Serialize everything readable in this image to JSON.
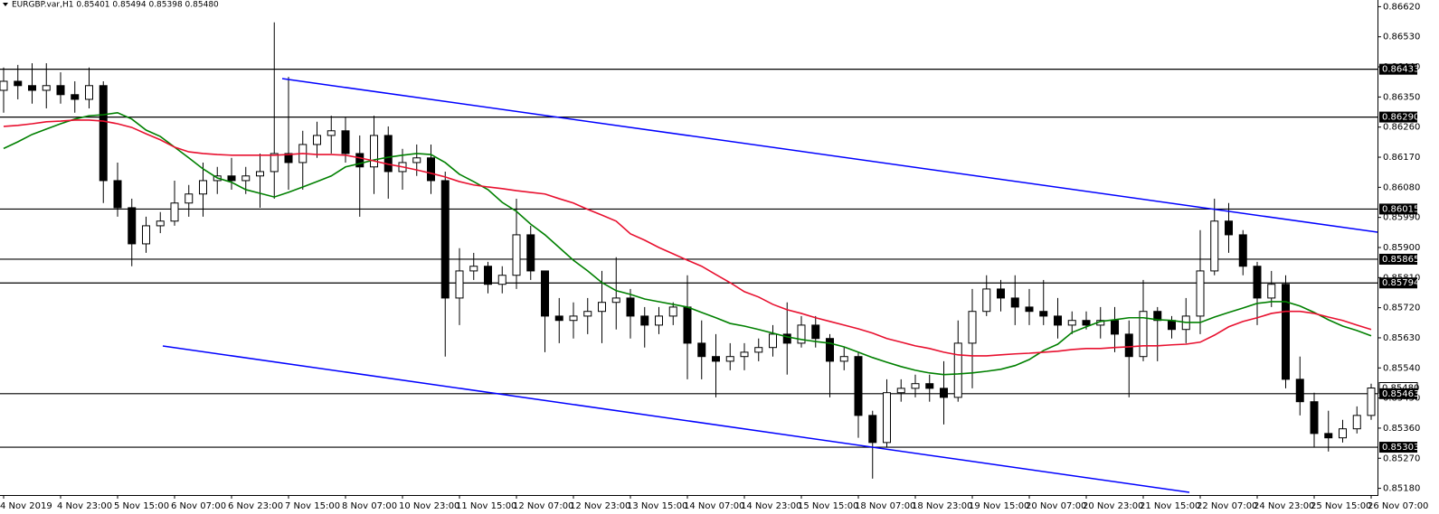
{
  "chart_data": {
    "type": "candlestick",
    "title": "EURGBP.var,H1  0.85401 0.85494 0.85398 0.85480",
    "categories": [
      "4 Nov 2019",
      null,
      null,
      null,
      "4 Nov 23:00",
      null,
      null,
      null,
      "5 Nov 15:00",
      null,
      null,
      null,
      "6 Nov 07:00",
      null,
      null,
      null,
      "6 Nov 23:00",
      null,
      null,
      null,
      "7 Nov 15:00",
      null,
      null,
      null,
      "8 Nov 07:00",
      null,
      null,
      null,
      "10 Nov 23:00",
      null,
      null,
      null,
      "11 Nov 15:00",
      null,
      null,
      null,
      "12 Nov 07:00",
      null,
      null,
      null,
      "12 Nov 23:00",
      null,
      null,
      null,
      "13 Nov 15:00",
      null,
      null,
      null,
      "14 Nov 07:00",
      null,
      null,
      null,
      "14 Nov 23:00",
      null,
      null,
      null,
      "15 Nov 15:00",
      null,
      null,
      null,
      "18 Nov 07:00",
      null,
      null,
      null,
      "18 Nov 23:00",
      null,
      null,
      null,
      "19 Nov 15:00",
      null,
      null,
      null,
      "20 Nov 07:00",
      null,
      null,
      null,
      "20 Nov 23:00",
      null,
      null,
      null,
      "21 Nov 15:00",
      null,
      null,
      null,
      "22 Nov 07:00",
      null,
      null,
      null,
      "24 Nov 23:00",
      null,
      null,
      null,
      "25 Nov 15:00",
      null,
      null,
      null,
      "26 Nov 07:00"
    ],
    "ohlc": [
      [
        0.8637,
        0.86438,
        0.86303,
        0.86397
      ],
      [
        0.86397,
        0.86446,
        0.86343,
        0.86384
      ],
      [
        0.86384,
        0.86451,
        0.8633,
        0.8637
      ],
      [
        0.8637,
        0.86451,
        0.86316,
        0.86384
      ],
      [
        0.86384,
        0.86424,
        0.8633,
        0.86357
      ],
      [
        0.86357,
        0.86397,
        0.86303,
        0.86343
      ],
      [
        0.86343,
        0.86438,
        0.86316,
        0.86384
      ],
      [
        0.86384,
        0.86397,
        0.86033,
        0.861
      ],
      [
        0.861,
        0.86154,
        0.85992,
        0.86019
      ],
      [
        0.86019,
        0.86046,
        0.85844,
        0.85911
      ],
      [
        0.85911,
        0.85992,
        0.85884,
        0.85965
      ],
      [
        0.85965,
        0.86006,
        0.85943,
        0.85979
      ],
      [
        0.85979,
        0.861,
        0.85965,
        0.86033
      ],
      [
        0.86033,
        0.86087,
        0.85992,
        0.8606
      ],
      [
        0.8606,
        0.86154,
        0.85992,
        0.861
      ],
      [
        0.861,
        0.86141,
        0.8606,
        0.86114
      ],
      [
        0.86114,
        0.86168,
        0.86073,
        0.861
      ],
      [
        0.861,
        0.86141,
        0.8606,
        0.86114
      ],
      [
        0.86114,
        0.86181,
        0.86019,
        0.86127
      ],
      [
        0.86127,
        0.86573,
        0.86046,
        0.86181
      ],
      [
        0.86181,
        0.8641,
        0.86073,
        0.86154
      ],
      [
        0.86154,
        0.86249,
        0.86073,
        0.86208
      ],
      [
        0.86208,
        0.86276,
        0.86168,
        0.86235
      ],
      [
        0.86235,
        0.86294,
        0.86181,
        0.86249
      ],
      [
        0.86249,
        0.86289,
        0.86154,
        0.86181
      ],
      [
        0.86181,
        0.86235,
        0.85992,
        0.86141
      ],
      [
        0.86141,
        0.86294,
        0.8606,
        0.86235
      ],
      [
        0.86235,
        0.86262,
        0.86046,
        0.86127
      ],
      [
        0.86127,
        0.86195,
        0.86073,
        0.86154
      ],
      [
        0.86154,
        0.86208,
        0.86114,
        0.86168
      ],
      [
        0.86168,
        0.86208,
        0.8606,
        0.861
      ],
      [
        0.861,
        0.86127,
        0.85574,
        0.85749
      ],
      [
        0.85749,
        0.85898,
        0.85668,
        0.8583
      ],
      [
        0.8583,
        0.85884,
        0.85803,
        0.85844
      ],
      [
        0.85844,
        0.85857,
        0.85763,
        0.8579
      ],
      [
        0.8579,
        0.85844,
        0.85763,
        0.85817
      ],
      [
        0.85817,
        0.86046,
        0.85776,
        0.85938
      ],
      [
        0.85938,
        0.85965,
        0.85803,
        0.8583
      ],
      [
        0.8583,
        0.8583,
        0.85587,
        0.85695
      ],
      [
        0.85695,
        0.85749,
        0.85614,
        0.85682
      ],
      [
        0.85682,
        0.85736,
        0.85628,
        0.85695
      ],
      [
        0.85695,
        0.85749,
        0.85641,
        0.85709
      ],
      [
        0.85709,
        0.8583,
        0.85614,
        0.85736
      ],
      [
        0.85736,
        0.85871,
        0.85655,
        0.85749
      ],
      [
        0.85749,
        0.85776,
        0.85628,
        0.85695
      ],
      [
        0.85695,
        0.85722,
        0.85601,
        0.85668
      ],
      [
        0.85668,
        0.85722,
        0.85641,
        0.85695
      ],
      [
        0.85695,
        0.85736,
        0.85668,
        0.85722
      ],
      [
        0.85722,
        0.85817,
        0.85506,
        0.85614
      ],
      [
        0.85614,
        0.85682,
        0.85506,
        0.85574
      ],
      [
        0.85574,
        0.85641,
        0.85452,
        0.8556
      ],
      [
        0.8556,
        0.85614,
        0.85533,
        0.85574
      ],
      [
        0.85574,
        0.85614,
        0.85533,
        0.85587
      ],
      [
        0.85587,
        0.85628,
        0.8556,
        0.85601
      ],
      [
        0.85601,
        0.85668,
        0.85574,
        0.85641
      ],
      [
        0.85641,
        0.85736,
        0.8552,
        0.85614
      ],
      [
        0.85614,
        0.85695,
        0.85601,
        0.85668
      ],
      [
        0.85668,
        0.85695,
        0.85601,
        0.85628
      ],
      [
        0.85628,
        0.85641,
        0.85452,
        0.8556
      ],
      [
        0.8556,
        0.85601,
        0.85533,
        0.85574
      ],
      [
        0.85574,
        0.85587,
        0.85331,
        0.85398
      ],
      [
        0.85398,
        0.85412,
        0.85209,
        0.85317
      ],
      [
        0.85317,
        0.85506,
        0.85304,
        0.85466
      ],
      [
        0.85466,
        0.85506,
        0.85439,
        0.85479
      ],
      [
        0.85479,
        0.8552,
        0.85452,
        0.85493
      ],
      [
        0.85493,
        0.8552,
        0.85439,
        0.85479
      ],
      [
        0.85479,
        0.8556,
        0.85371,
        0.85452
      ],
      [
        0.85452,
        0.85682,
        0.85439,
        0.85614
      ],
      [
        0.85614,
        0.85776,
        0.85479,
        0.85709
      ],
      [
        0.85709,
        0.85817,
        0.85695,
        0.85776
      ],
      [
        0.85776,
        0.85803,
        0.85709,
        0.85749
      ],
      [
        0.85749,
        0.85817,
        0.85668,
        0.85722
      ],
      [
        0.85722,
        0.85776,
        0.85668,
        0.85709
      ],
      [
        0.85709,
        0.85803,
        0.85668,
        0.85695
      ],
      [
        0.85695,
        0.85749,
        0.85628,
        0.85668
      ],
      [
        0.85668,
        0.85709,
        0.85641,
        0.85682
      ],
      [
        0.85682,
        0.85709,
        0.85655,
        0.85668
      ],
      [
        0.85668,
        0.85722,
        0.85628,
        0.85682
      ],
      [
        0.85682,
        0.85722,
        0.85587,
        0.85641
      ],
      [
        0.85641,
        0.85682,
        0.85452,
        0.85574
      ],
      [
        0.85574,
        0.85803,
        0.8556,
        0.85709
      ],
      [
        0.85709,
        0.85722,
        0.8556,
        0.85682
      ],
      [
        0.85682,
        0.85695,
        0.85628,
        0.85655
      ],
      [
        0.85655,
        0.85749,
        0.85614,
        0.85695
      ],
      [
        0.85695,
        0.85952,
        0.85641,
        0.8583
      ],
      [
        0.8583,
        0.86046,
        0.85817,
        0.85979
      ],
      [
        0.85979,
        0.86033,
        0.85884,
        0.85938
      ],
      [
        0.85938,
        0.85952,
        0.85817,
        0.85844
      ],
      [
        0.85844,
        0.85857,
        0.85668,
        0.85749
      ],
      [
        0.85749,
        0.8583,
        0.85722,
        0.8579
      ],
      [
        0.8579,
        0.85817,
        0.85479,
        0.85506
      ],
      [
        0.85506,
        0.85574,
        0.85398,
        0.85439
      ],
      [
        0.85439,
        0.85466,
        0.85304,
        0.85344
      ],
      [
        0.85344,
        0.85412,
        0.8529,
        0.85331
      ],
      [
        0.85331,
        0.85385,
        0.85317,
        0.85358
      ],
      [
        0.85358,
        0.85425,
        0.85344,
        0.85398
      ],
      [
        0.85398,
        0.85493,
        0.85385,
        0.8548
      ]
    ],
    "lines": [
      {
        "color": "#008000",
        "values": [
          0.86196,
          0.86216,
          0.86238,
          0.86254,
          0.8627,
          0.86284,
          0.86294,
          0.86297,
          0.86303,
          0.86284,
          0.86251,
          0.86232,
          0.862,
          0.86168,
          0.86135,
          0.86108,
          0.86095,
          0.86073,
          0.86062,
          0.86051,
          0.86065,
          0.86081,
          0.86097,
          0.86114,
          0.86141,
          0.86151,
          0.86162,
          0.8617,
          0.86176,
          0.86181,
          0.86178,
          0.86154,
          0.86119,
          0.86097,
          0.86073,
          0.86035,
          0.86008,
          0.8597,
          0.85938,
          0.859,
          0.85862,
          0.8583,
          0.85795,
          0.85771,
          0.8576,
          0.85746,
          0.85738,
          0.8573,
          0.85722,
          0.85706,
          0.8569,
          0.85673,
          0.85665,
          0.85655,
          0.85644,
          0.85633,
          0.85625,
          0.85619,
          0.85614,
          0.85603,
          0.85587,
          0.85571,
          0.85557,
          0.85544,
          0.85533,
          0.85525,
          0.8552,
          0.85522,
          0.85525,
          0.8553,
          0.85536,
          0.85547,
          0.85565,
          0.85592,
          0.85611,
          0.85646,
          0.85663,
          0.85679,
          0.85684,
          0.8569,
          0.8569,
          0.85684,
          0.85682,
          0.85676,
          0.85676,
          0.85692,
          0.85706,
          0.85719,
          0.85733,
          0.85738,
          0.85738,
          0.85725,
          0.85706,
          0.85684,
          0.85665,
          0.85652,
          0.85636
        ]
      },
      {
        "color": "#e8102f",
        "values": [
          0.86262,
          0.86265,
          0.8627,
          0.86276,
          0.86278,
          0.86281,
          0.86281,
          0.86278,
          0.8627,
          0.86259,
          0.8624,
          0.86222,
          0.862,
          0.86186,
          0.86181,
          0.86178,
          0.86176,
          0.86176,
          0.86176,
          0.86176,
          0.86178,
          0.86181,
          0.86178,
          0.86178,
          0.86176,
          0.86168,
          0.86159,
          0.86149,
          0.86141,
          0.86132,
          0.86122,
          0.86111,
          0.86097,
          0.86087,
          0.86081,
          0.86076,
          0.8607,
          0.86065,
          0.8606,
          0.86046,
          0.86033,
          0.86014,
          0.85997,
          0.85979,
          0.85941,
          0.85922,
          0.859,
          0.85881,
          0.85862,
          0.85844,
          0.85819,
          0.85795,
          0.85768,
          0.85752,
          0.8573,
          0.85714,
          0.85703,
          0.8569,
          0.85679,
          0.85668,
          0.85657,
          0.85644,
          0.85628,
          0.85617,
          0.85606,
          0.85598,
          0.85587,
          0.85579,
          0.85576,
          0.85576,
          0.85579,
          0.85582,
          0.85584,
          0.85587,
          0.8559,
          0.85595,
          0.85598,
          0.85598,
          0.85601,
          0.85603,
          0.85606,
          0.85606,
          0.85609,
          0.85611,
          0.85617,
          0.85638,
          0.85663,
          0.85679,
          0.8569,
          0.85703,
          0.85709,
          0.85709,
          0.85703,
          0.85692,
          0.85682,
          0.85668,
          0.85655
        ]
      }
    ],
    "levels": [
      {
        "value": 0.86433,
        "label": "0.86433"
      },
      {
        "value": 0.8629,
        "label": "0.86290"
      },
      {
        "value": 0.86015,
        "label": "0.86015"
      },
      {
        "value": 0.85865,
        "label": "0.85865"
      },
      {
        "value": 0.85794,
        "label": "0.85794"
      },
      {
        "value": 0.85463,
        "label": "0.85463"
      },
      {
        "value": 0.85303,
        "label": "0.85303"
      }
    ],
    "current_price": {
      "value": 0.8548,
      "label": "0.85480"
    },
    "ylim": [
      0.8516,
      0.8664
    ],
    "yticks": [
      {
        "value": 0.8518,
        "label": "0.85180"
      },
      {
        "value": 0.8527,
        "label": "0.85270"
      },
      {
        "value": 0.8536,
        "label": "0.85360"
      },
      {
        "value": 0.8545,
        "label": "0.85450"
      },
      {
        "value": 0.8554,
        "label": "0.85540"
      },
      {
        "value": 0.8563,
        "label": "0.85630"
      },
      {
        "value": 0.8572,
        "label": "0.85720"
      },
      {
        "value": 0.8581,
        "label": "0.85810"
      },
      {
        "value": 0.859,
        "label": "0.85900"
      },
      {
        "value": 0.8599,
        "label": "0.85990"
      },
      {
        "value": 0.8608,
        "label": "0.86080"
      },
      {
        "value": 0.8617,
        "label": "0.86170"
      },
      {
        "value": 0.8626,
        "label": "0.86260"
      },
      {
        "value": 0.8635,
        "label": "0.86350"
      },
      {
        "value": 0.8644,
        "label": "0.86440"
      },
      {
        "value": 0.8653,
        "label": "0.86530"
      },
      {
        "value": 0.8662,
        "label": "0.86620"
      }
    ]
  }
}
